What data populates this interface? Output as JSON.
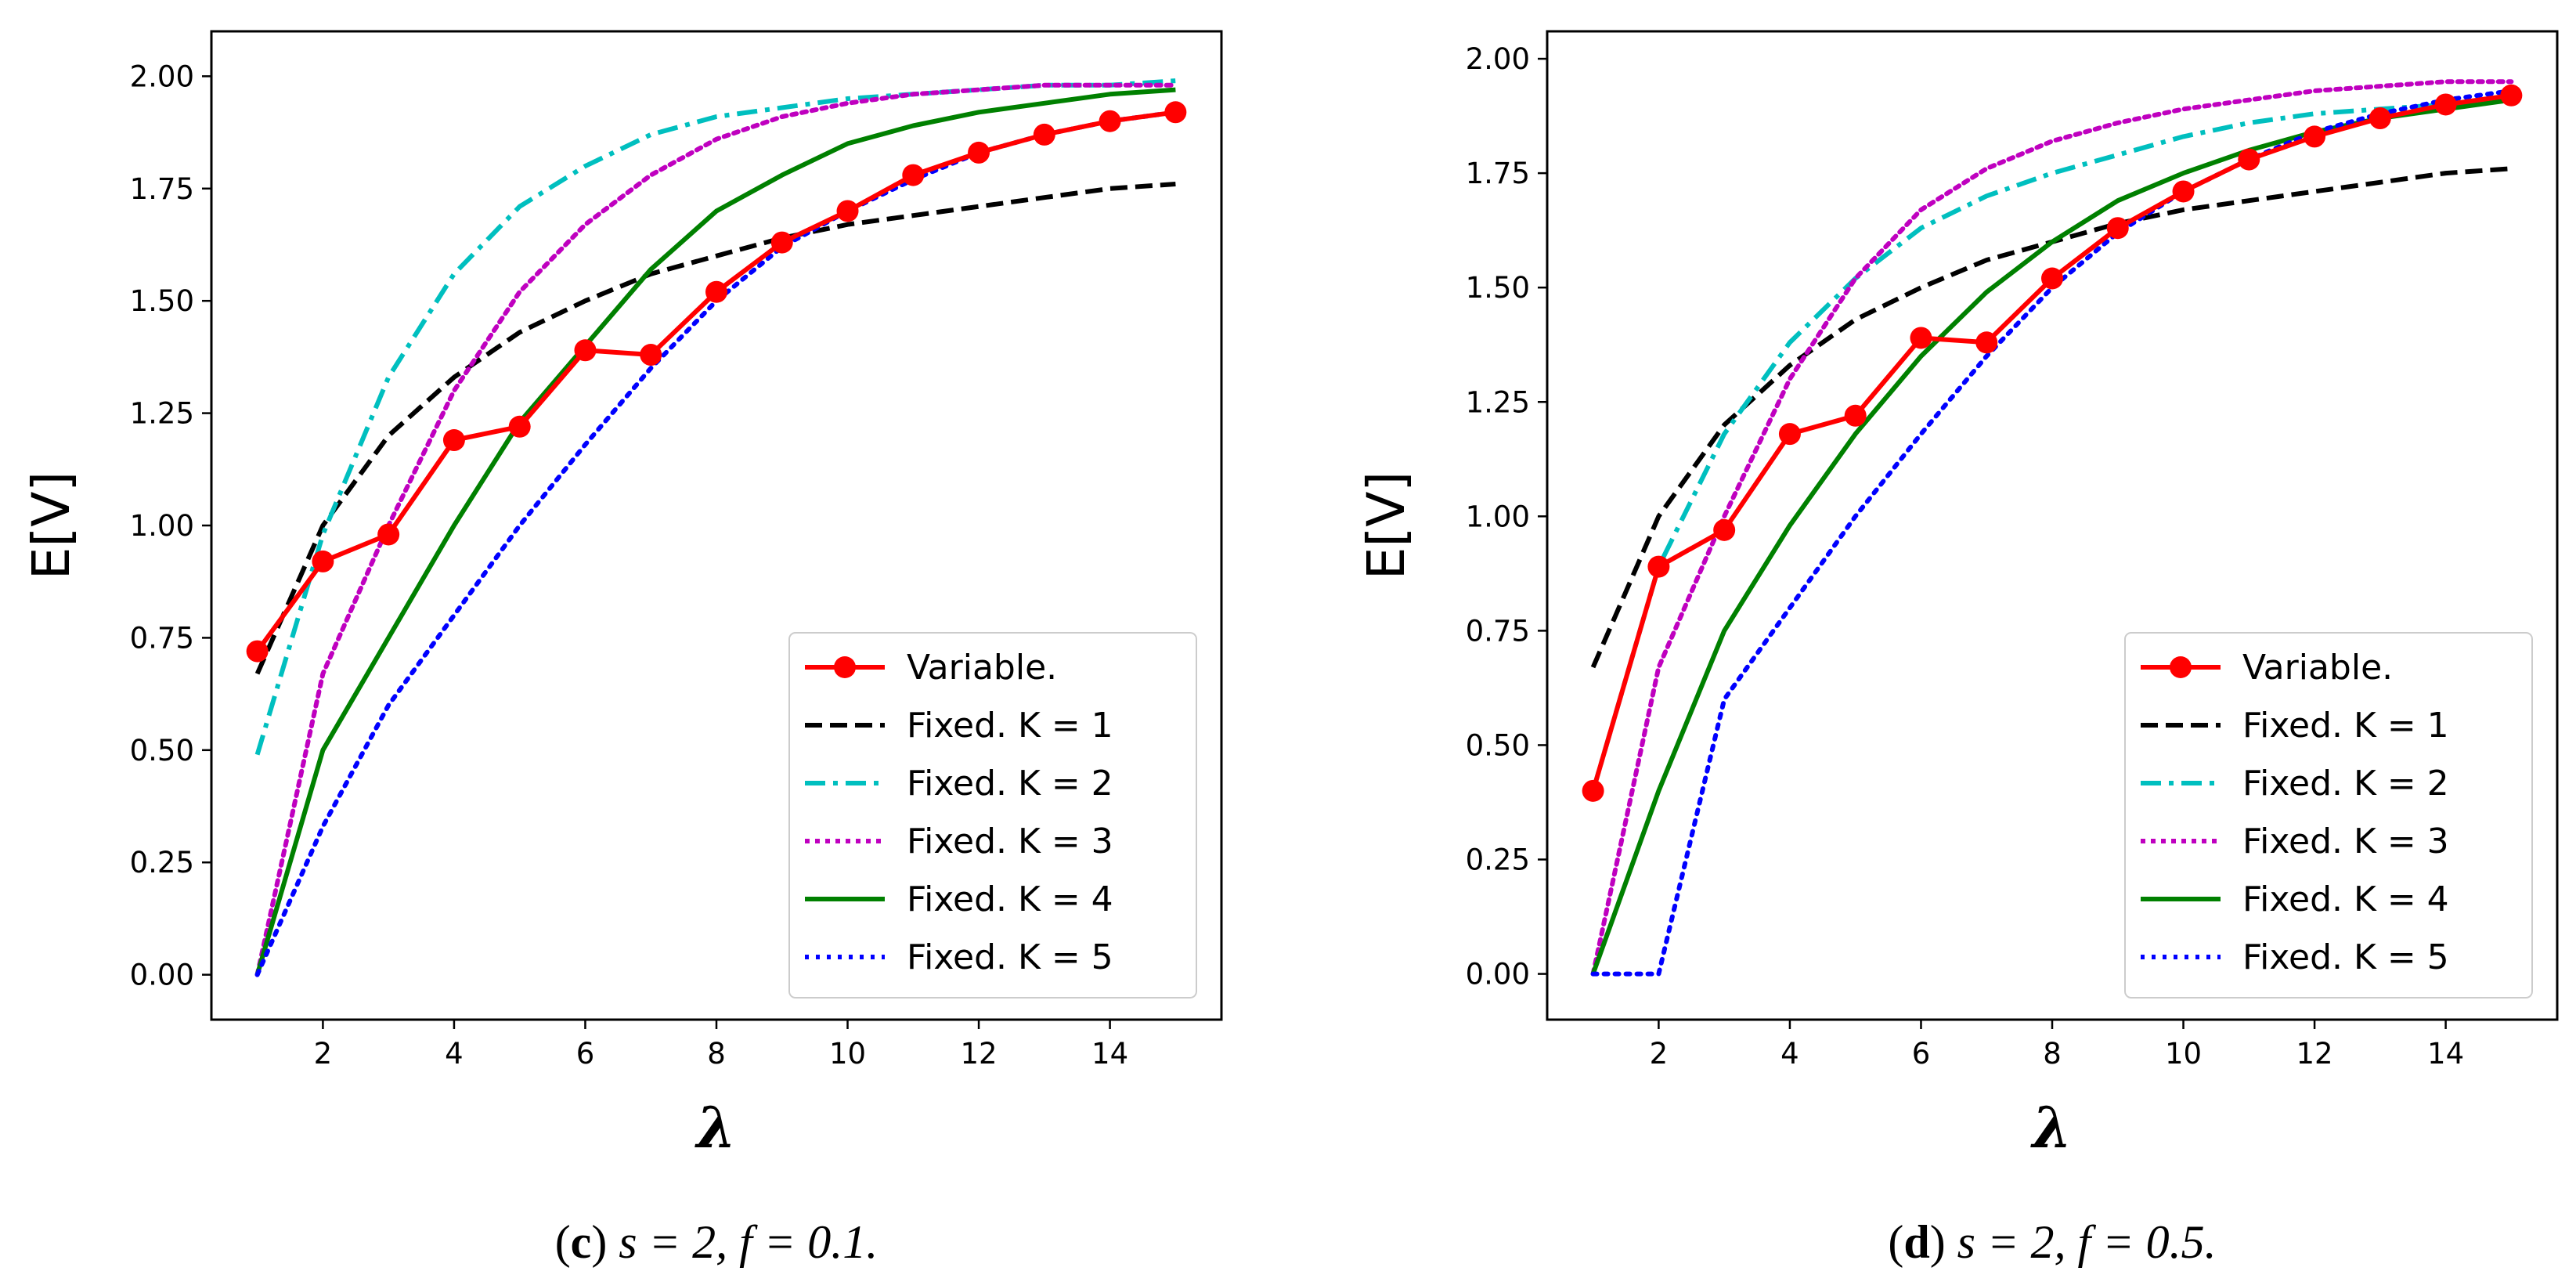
{
  "chart_data": [
    {
      "type": "line",
      "caption": {
        "letter": "c",
        "text": "s = 2, f = 0.1."
      },
      "xlabel": "λ",
      "ylabel": "E[V]",
      "xlim": [
        0.3,
        15.7
      ],
      "ylim": [
        -0.1,
        2.1
      ],
      "xticks": [
        2,
        4,
        6,
        8,
        10,
        12,
        14
      ],
      "yticks": [
        0.0,
        0.25,
        0.5,
        0.75,
        1.0,
        1.25,
        1.5,
        1.75,
        2.0
      ],
      "ytick_labels": [
        "0.00",
        "0.25",
        "0.50",
        "0.75",
        "1.00",
        "1.25",
        "1.50",
        "1.75",
        "2.00"
      ],
      "legend_position": "bottom-right",
      "x": [
        1,
        2,
        3,
        4,
        5,
        6,
        7,
        8,
        9,
        10,
        11,
        12,
        13,
        14,
        15
      ],
      "series": [
        {
          "name": "Variable.",
          "color": "#ff0000",
          "style": "solid-marker",
          "values": [
            0.72,
            0.92,
            0.98,
            1.19,
            1.22,
            1.39,
            1.38,
            1.52,
            1.63,
            1.7,
            1.78,
            1.83,
            1.87,
            1.9,
            1.92
          ]
        },
        {
          "name": "Fixed. K = 1",
          "color": "#000000",
          "style": "dashed",
          "values": [
            0.67,
            1.0,
            1.2,
            1.33,
            1.43,
            1.5,
            1.56,
            1.6,
            1.64,
            1.67,
            1.69,
            1.71,
            1.73,
            1.75,
            1.76
          ]
        },
        {
          "name": "Fixed. K = 2",
          "color": "#00bfbf",
          "style": "dashdot",
          "values": [
            0.49,
            0.98,
            1.33,
            1.56,
            1.71,
            1.8,
            1.87,
            1.91,
            1.93,
            1.95,
            1.96,
            1.97,
            1.98,
            1.98,
            1.99
          ]
        },
        {
          "name": "Fixed. K = 3",
          "color": "#bf00bf",
          "style": "dotted",
          "values": [
            0.0,
            0.67,
            1.0,
            1.3,
            1.52,
            1.67,
            1.78,
            1.86,
            1.91,
            1.94,
            1.96,
            1.97,
            1.98,
            1.98,
            1.98
          ]
        },
        {
          "name": "Fixed. K = 4",
          "color": "#008000",
          "style": "solid",
          "values": [
            0.0,
            0.5,
            0.75,
            1.0,
            1.23,
            1.4,
            1.57,
            1.7,
            1.78,
            1.85,
            1.89,
            1.92,
            1.94,
            1.96,
            1.97
          ]
        },
        {
          "name": "Fixed. K = 5",
          "color": "#0000ff",
          "style": "densedot",
          "values": [
            0.0,
            0.33,
            0.6,
            0.8,
            1.0,
            1.18,
            1.35,
            1.5,
            1.62,
            1.7,
            1.77,
            1.83,
            1.87,
            1.9,
            1.92
          ]
        }
      ]
    },
    {
      "type": "line",
      "caption": {
        "letter": "d",
        "text": "s = 2, f = 0.5."
      },
      "xlabel": "λ",
      "ylabel": "E[V]",
      "xlim": [
        0.3,
        15.7
      ],
      "ylim": [
        -0.1,
        2.06
      ],
      "xticks": [
        2,
        4,
        6,
        8,
        10,
        12,
        14
      ],
      "yticks": [
        0.0,
        0.25,
        0.5,
        0.75,
        1.0,
        1.25,
        1.5,
        1.75,
        2.0
      ],
      "ytick_labels": [
        "0.00",
        "0.25",
        "0.50",
        "0.75",
        "1.00",
        "1.25",
        "1.50",
        "1.75",
        "2.00"
      ],
      "legend_position": "bottom-right",
      "x": [
        1,
        2,
        3,
        4,
        5,
        6,
        7,
        8,
        9,
        10,
        11,
        12,
        13,
        14,
        15
      ],
      "series": [
        {
          "name": "Variable.",
          "color": "#ff0000",
          "style": "solid-marker",
          "values": [
            0.4,
            0.89,
            0.97,
            1.18,
            1.22,
            1.39,
            1.38,
            1.52,
            1.63,
            1.71,
            1.78,
            1.83,
            1.87,
            1.9,
            1.92
          ]
        },
        {
          "name": "Fixed. K = 1",
          "color": "#000000",
          "style": "dashed",
          "values": [
            0.67,
            1.0,
            1.2,
            1.33,
            1.43,
            1.5,
            1.56,
            1.6,
            1.64,
            1.67,
            1.69,
            1.71,
            1.73,
            1.75,
            1.76
          ]
        },
        {
          "name": "Fixed. K = 2",
          "color": "#00bfbf",
          "style": "dashdot",
          "values": [
            0.4,
            0.89,
            1.18,
            1.38,
            1.52,
            1.63,
            1.7,
            1.75,
            1.79,
            1.83,
            1.86,
            1.88,
            1.89,
            1.9,
            1.91
          ]
        },
        {
          "name": "Fixed. K = 3",
          "color": "#bf00bf",
          "style": "dotted",
          "values": [
            0.0,
            0.67,
            1.0,
            1.3,
            1.52,
            1.67,
            1.76,
            1.82,
            1.86,
            1.89,
            1.91,
            1.93,
            1.94,
            1.95,
            1.95
          ]
        },
        {
          "name": "Fixed. K = 4",
          "color": "#008000",
          "style": "solid",
          "values": [
            0.0,
            0.4,
            0.75,
            0.98,
            1.18,
            1.35,
            1.49,
            1.6,
            1.69,
            1.75,
            1.8,
            1.84,
            1.87,
            1.89,
            1.91
          ]
        },
        {
          "name": "Fixed. K = 5",
          "color": "#0000ff",
          "style": "densedot",
          "values": [
            0.0,
            0.0,
            0.6,
            0.8,
            1.0,
            1.18,
            1.35,
            1.5,
            1.62,
            1.71,
            1.78,
            1.84,
            1.88,
            1.91,
            1.93
          ]
        }
      ]
    }
  ]
}
